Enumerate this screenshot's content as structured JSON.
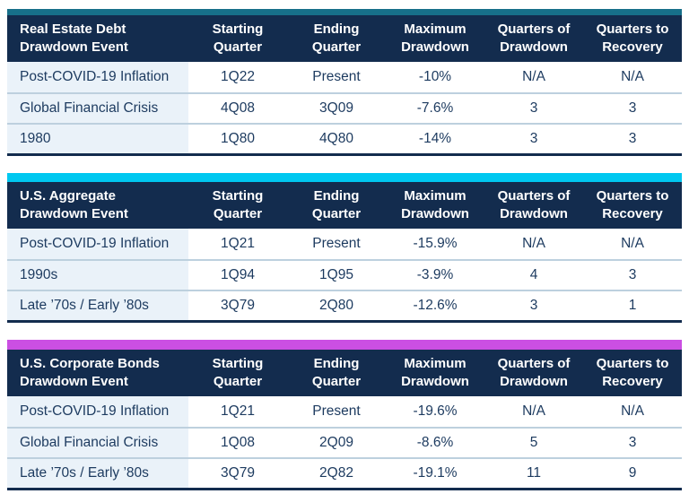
{
  "colors": {
    "header_navy": "#132c4e",
    "data_text_navy": "#1c3a5f",
    "event_column_bg": "#eaf2f9",
    "row_divider": "#bdd0de",
    "accent_teal": "#17708a",
    "accent_cyan": "#00c8f0",
    "accent_magenta": "#cb4fe3"
  },
  "tables": [
    {
      "title": "Real Estate Debt\nDrawdown Event",
      "accent_color": "#17708a",
      "columns": [
        "Starting\nQuarter",
        "Ending\nQuarter",
        "Maximum\nDrawdown",
        "Quarters of\nDrawdown",
        "Quarters to\nRecovery"
      ],
      "rows": [
        [
          "Post-COVID-19 Inflation",
          "1Q22",
          "Present",
          "-10%",
          "N/A",
          "N/A"
        ],
        [
          "Global Financial Crisis",
          "4Q08",
          "3Q09",
          "-7.6%",
          "3",
          "3"
        ],
        [
          "1980",
          "1Q80",
          "4Q80",
          "-14%",
          "3",
          "3"
        ]
      ]
    },
    {
      "title": "U.S. Aggregate\nDrawdown Event",
      "accent_color": "#00c8f0",
      "columns": [
        "Starting\nQuarter",
        "Ending\nQuarter",
        "Maximum\nDrawdown",
        "Quarters of\nDrawdown",
        "Quarters to\nRecovery"
      ],
      "rows": [
        [
          "Post-COVID-19 Inflation",
          "1Q21",
          "Present",
          "-15.9%",
          "N/A",
          "N/A"
        ],
        [
          "1990s",
          "1Q94",
          "1Q95",
          "-3.9%",
          "4",
          "3"
        ],
        [
          "Late ’70s / Early ’80s",
          "3Q79",
          "2Q80",
          "-12.6%",
          "3",
          "1"
        ]
      ]
    },
    {
      "title": "U.S. Corporate Bonds\nDrawdown Event",
      "accent_color": "#cb4fe3",
      "columns": [
        "Starting\nQuarter",
        "Ending\nQuarter",
        "Maximum\nDrawdown",
        "Quarters of\nDrawdown",
        "Quarters to\nRecovery"
      ],
      "rows": [
        [
          "Post-COVID-19 Inflation",
          "1Q21",
          "Present",
          "-19.6%",
          "N/A",
          "N/A"
        ],
        [
          "Global Financial Crisis",
          "1Q08",
          "2Q09",
          "-8.6%",
          "5",
          "3"
        ],
        [
          "Late ’70s / Early ’80s",
          "3Q79",
          "2Q82",
          "-19.1%",
          "11",
          "9"
        ]
      ]
    }
  ]
}
